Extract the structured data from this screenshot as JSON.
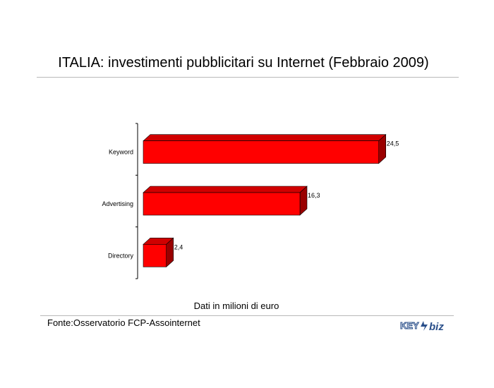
{
  "header": {
    "title": "ITALIA: investimenti pubblicitari su Internet (Febbraio 2009)"
  },
  "chart_data": {
    "type": "bar",
    "orientation": "horizontal",
    "title": "ITALIA: investimenti pubblicitari su Internet (Febbraio 2009)",
    "xlabel": "Dati in milioni di euro",
    "ylabel": "",
    "categories": [
      "Keyword",
      "Advertising",
      "Directory"
    ],
    "values": [
      24.5,
      16.3,
      2.4
    ],
    "value_labels": [
      "24,5",
      "16,3",
      "2,4"
    ],
    "xlim": [
      0,
      26
    ],
    "grid": false,
    "bar_color": "#ff0000",
    "bar_side_color": "#9a0000",
    "bar_top_color": "#d00000"
  },
  "footer": {
    "source": "Fonte:Osservatorio FCP-Assointernet",
    "logo_text": "KEY4biz",
    "logo_color": "#2a4f8a"
  }
}
